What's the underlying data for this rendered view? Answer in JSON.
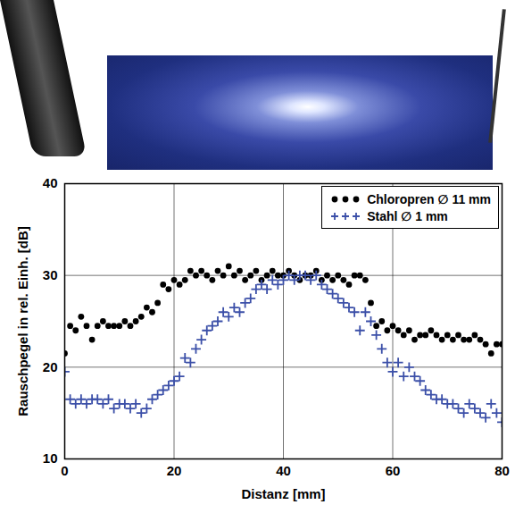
{
  "chart_data": {
    "type": "scatter",
    "x_label": "Distanz [mm]",
    "y_label": "Rauschpegel in rel. Einh. [dB]",
    "xlim": [
      0,
      80
    ],
    "xticks": [
      0,
      20,
      40,
      60,
      80
    ],
    "ylim": [
      10,
      40
    ],
    "yticks": [
      10,
      20,
      30,
      40
    ],
    "grid": true,
    "legend": "top-right",
    "x": [
      0,
      1,
      2,
      3,
      4,
      5,
      6,
      7,
      8,
      9,
      10,
      11,
      12,
      13,
      14,
      15,
      16,
      17,
      18,
      19,
      20,
      21,
      22,
      23,
      24,
      25,
      26,
      27,
      28,
      29,
      30,
      31,
      32,
      33,
      34,
      35,
      36,
      37,
      38,
      39,
      40,
      41,
      42,
      43,
      44,
      45,
      46,
      47,
      48,
      49,
      50,
      51,
      52,
      53,
      54,
      55,
      56,
      57,
      58,
      59,
      60,
      61,
      62,
      63,
      64,
      65,
      66,
      67,
      68,
      69,
      70,
      71,
      72,
      73,
      74,
      75,
      76,
      77,
      78,
      79,
      80
    ],
    "series": [
      {
        "name": "Chloropren ∅ 11 mm",
        "color": "#000000",
        "marker": "dot",
        "values": [
          21.5,
          24.5,
          24,
          25.5,
          24.5,
          23,
          24.5,
          25,
          24.5,
          24.5,
          24.5,
          25,
          24.5,
          25,
          25.5,
          26.5,
          26,
          27,
          29,
          28.5,
          29.5,
          29,
          29.5,
          30.5,
          30,
          30.5,
          30,
          29.5,
          30.5,
          30,
          31,
          30,
          30.5,
          29.5,
          30,
          30.5,
          29.5,
          30,
          30.5,
          30,
          30,
          30.5,
          30,
          29.5,
          30,
          30,
          30.5,
          29.5,
          30,
          29.5,
          30,
          29.5,
          29,
          30,
          30,
          29.5,
          27,
          24.5,
          25,
          24,
          24.5,
          24,
          23.5,
          24,
          23,
          23.5,
          23.5,
          24,
          23.5,
          23,
          23.5,
          23,
          23.5,
          23,
          23,
          23.5,
          23,
          22.5,
          21.5,
          22.5,
          22.5
        ]
      },
      {
        "name": "Stahl ∅ 1 mm",
        "color": "#3b4fa8",
        "marker": "plus",
        "values": [
          19.5,
          16.5,
          16,
          16.5,
          16,
          16.5,
          16.5,
          16,
          16.5,
          15.5,
          16,
          16,
          15.5,
          16,
          15,
          15.5,
          16.5,
          17,
          17.5,
          18,
          18.5,
          19,
          21,
          20.5,
          22,
          23,
          24,
          24.5,
          25,
          26,
          25.5,
          26.5,
          26,
          27,
          27.5,
          28.5,
          29,
          28.5,
          29.5,
          29,
          29.5,
          30,
          29.5,
          30,
          30,
          29.5,
          30,
          29,
          28.5,
          28,
          27.5,
          27,
          26.5,
          26,
          24,
          26,
          25,
          23.5,
          22,
          20.5,
          19.5,
          20.5,
          19,
          20,
          19,
          18.5,
          17.5,
          17,
          16.5,
          16.5,
          16,
          16,
          15.5,
          15,
          16,
          15.5,
          15,
          14.5,
          16,
          15,
          14
        ]
      }
    ]
  }
}
